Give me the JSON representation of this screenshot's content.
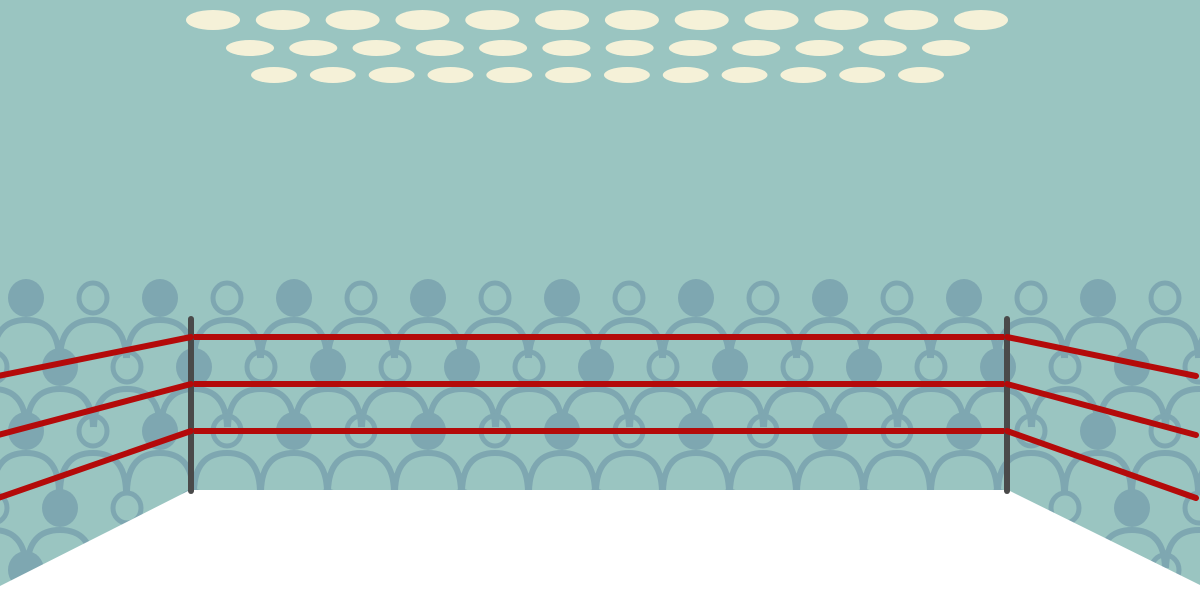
{
  "scene": {
    "colors": {
      "wall": "#9AC5C1",
      "spectator": "#7EA7B1",
      "spotlight": "#F5F1D8",
      "rope": "#B40A0A",
      "post": "#4A4A4A",
      "canvas": "#FFFFFF"
    },
    "spotlight_rows": [
      12,
      12,
      12
    ],
    "crowd_rows": 5,
    "ring_ropes": 3,
    "ring_posts": 2
  }
}
